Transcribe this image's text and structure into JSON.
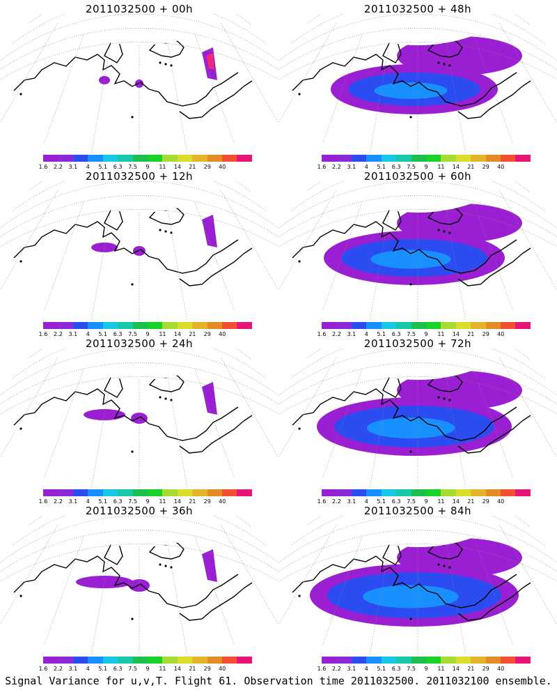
{
  "panels": [
    {
      "title": "2011032500 + 00h",
      "level": 0
    },
    {
      "title": "2011032500 + 48h",
      "level": 4
    },
    {
      "title": "2011032500 + 12h",
      "level": 1
    },
    {
      "title": "2011032500 + 60h",
      "level": 5
    },
    {
      "title": "2011032500 + 24h",
      "level": 2
    },
    {
      "title": "2011032500 + 72h",
      "level": 6
    },
    {
      "title": "2011032500 + 36h",
      "level": 3
    },
    {
      "title": "2011032500 + 84h",
      "level": 7
    }
  ],
  "colorbar": {
    "labels": [
      "1.6",
      "2.2",
      "3.1",
      "4",
      "5.1",
      "6.3",
      "7.5",
      "9",
      "11",
      "14",
      "21",
      "29",
      "40"
    ],
    "colors": [
      "#9a1ed2",
      "#8c2ad8",
      "#2a4cf0",
      "#1890ff",
      "#16c8e8",
      "#16c8a8",
      "#1ebe4e",
      "#18d228",
      "#a6dc32",
      "#dcdc2a",
      "#e6b22c",
      "#e68a28",
      "#f05030",
      "#e61678"
    ]
  },
  "footer": "Signal Variance for u,v,T. Flight 61. Observation time 2011032500. 2011032100 ensemble."
}
